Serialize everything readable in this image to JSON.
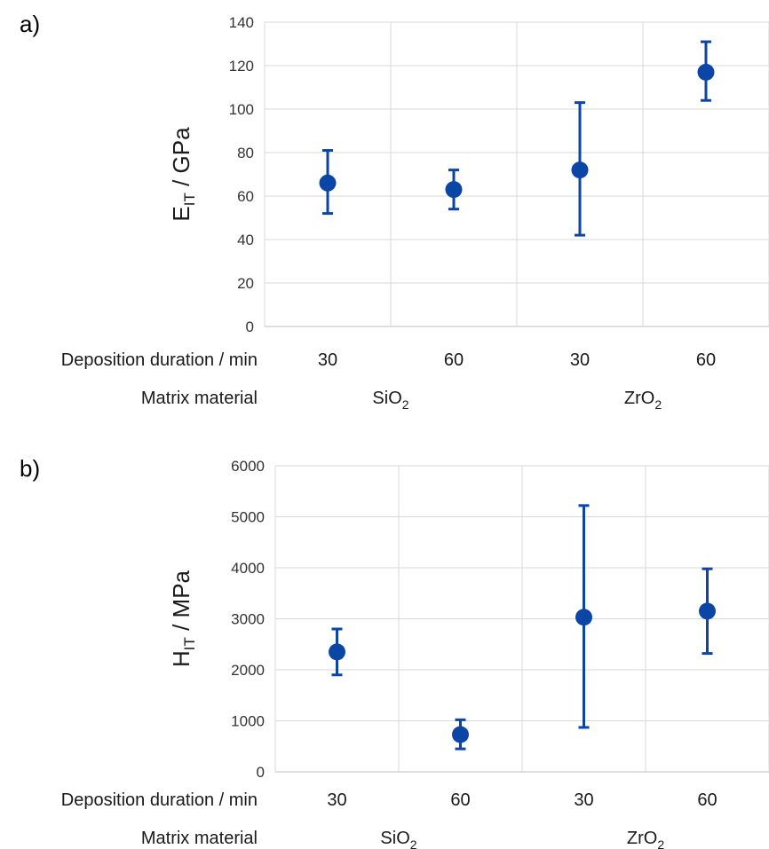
{
  "figure": {
    "xaxis_row1_label": "Deposition duration / min",
    "xaxis_row2_label": "Matrix material",
    "groups": [
      {
        "main": "SiO",
        "sub": "2"
      },
      {
        "main": "ZrO",
        "sub": "2"
      }
    ]
  },
  "chart_data": [
    {
      "type": "scatter",
      "panel_label": "a)",
      "ylabel_main": "E",
      "ylabel_sub": "IT",
      "ylabel_rest": " / GPa",
      "ylim": [
        0,
        140
      ],
      "yticks": [
        0,
        20,
        40,
        60,
        80,
        100,
        120,
        140
      ],
      "categories": [
        "30",
        "60",
        "30",
        "60"
      ],
      "groups": [
        "SiO2",
        "SiO2",
        "ZrO2",
        "ZrO2"
      ],
      "values": [
        66,
        63,
        72,
        117
      ],
      "err_low": [
        52,
        54,
        42,
        104
      ],
      "err_high": [
        81,
        72,
        103,
        131
      ],
      "grid": true,
      "color": "#0b46a6"
    },
    {
      "type": "scatter",
      "panel_label": "b)",
      "ylabel_main": "H",
      "ylabel_sub": "IT",
      "ylabel_rest": " / MPa",
      "ylim": [
        0,
        6000
      ],
      "yticks": [
        0,
        1000,
        2000,
        3000,
        4000,
        5000,
        6000
      ],
      "categories": [
        "30",
        "60",
        "30",
        "60"
      ],
      "groups": [
        "SiO2",
        "SiO2",
        "ZrO2",
        "ZrO2"
      ],
      "values": [
        2350,
        730,
        3030,
        3150
      ],
      "err_low": [
        1900,
        450,
        870,
        2320
      ],
      "err_high": [
        2800,
        1020,
        5220,
        3980
      ],
      "grid": true,
      "color": "#0b46a6"
    }
  ]
}
